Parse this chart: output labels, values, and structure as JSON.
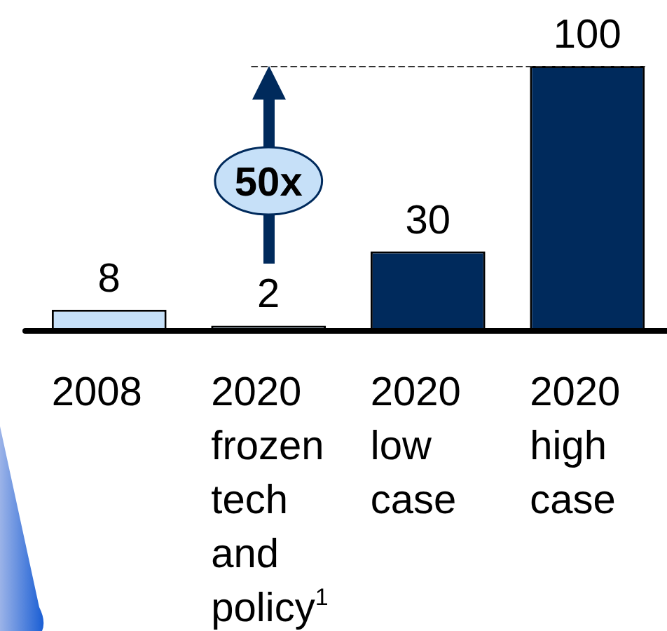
{
  "chart_data": {
    "type": "bar",
    "categories": [
      "2008",
      "2020 frozen tech and policy$^{1}$",
      "2020 low case",
      "2020 high case"
    ],
    "values": [
      8,
      2,
      30,
      100
    ],
    "colors": [
      "#c6e0f8",
      "#c6e0f8",
      "#002a5c",
      "#002a5c"
    ],
    "ylim": [
      0,
      100
    ],
    "data_labels": true,
    "ref_lines": [
      {
        "axis": "y",
        "value": 100,
        "line_style": "dashed",
        "color": "#333333"
      }
    ],
    "annotations": [
      "50x"
    ]
  }
}
